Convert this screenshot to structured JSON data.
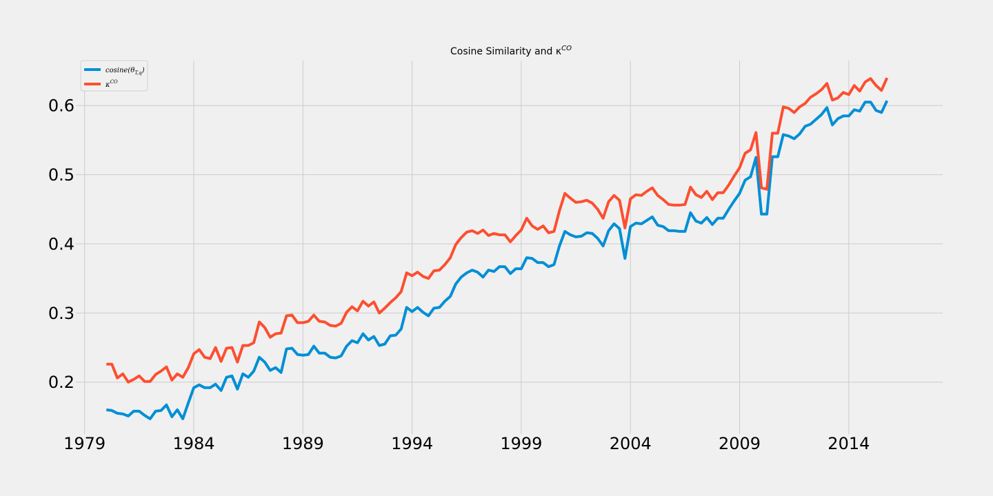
{
  "chart_data": {
    "type": "line",
    "title": "Cosine Similarity and κ",
    "title_sup": "CO",
    "xlabel": "",
    "ylabel": "",
    "xlim": [
      1978.6,
      2018.3
    ],
    "ylim": [
      0.125,
      0.665
    ],
    "x_ticks": [
      1979,
      1984,
      1989,
      1994,
      1999,
      2004,
      2009,
      2014
    ],
    "y_ticks": [
      0.2,
      0.3,
      0.4,
      0.5,
      0.6
    ],
    "y_tick_labels": [
      "0.2",
      "0.3",
      "0.4",
      "0.5",
      "0.6"
    ],
    "grid": true,
    "legend_position": "top-left",
    "x_start": 1980.0,
    "x_step": 0.25,
    "series": [
      {
        "name": "cosine(θ",
        "name_sub": "T,q",
        "name_suffix": ")",
        "color": "#008fd5",
        "values": [
          0.16,
          0.159,
          0.155,
          0.154,
          0.151,
          0.158,
          0.158,
          0.152,
          0.147,
          0.158,
          0.159,
          0.167,
          0.15,
          0.16,
          0.147,
          0.17,
          0.192,
          0.196,
          0.192,
          0.192,
          0.197,
          0.188,
          0.207,
          0.209,
          0.19,
          0.212,
          0.207,
          0.216,
          0.236,
          0.229,
          0.217,
          0.221,
          0.214,
          0.248,
          0.249,
          0.24,
          0.239,
          0.24,
          0.252,
          0.242,
          0.242,
          0.236,
          0.235,
          0.238,
          0.252,
          0.26,
          0.257,
          0.27,
          0.261,
          0.266,
          0.253,
          0.255,
          0.267,
          0.268,
          0.277,
          0.308,
          0.302,
          0.308,
          0.301,
          0.296,
          0.307,
          0.308,
          0.317,
          0.324,
          0.342,
          0.352,
          0.358,
          0.362,
          0.359,
          0.352,
          0.362,
          0.36,
          0.367,
          0.367,
          0.357,
          0.364,
          0.364,
          0.38,
          0.379,
          0.373,
          0.373,
          0.367,
          0.37,
          0.397,
          0.418,
          0.413,
          0.41,
          0.411,
          0.416,
          0.415,
          0.408,
          0.397,
          0.419,
          0.429,
          0.422,
          0.379,
          0.425,
          0.43,
          0.429,
          0.434,
          0.439,
          0.427,
          0.425,
          0.419,
          0.419,
          0.418,
          0.418,
          0.445,
          0.433,
          0.43,
          0.438,
          0.428,
          0.437,
          0.437,
          0.45,
          0.462,
          0.473,
          0.492,
          0.497,
          0.525,
          0.443,
          0.443,
          0.526,
          0.526,
          0.558,
          0.556,
          0.552,
          0.559,
          0.57,
          0.573,
          0.58,
          0.587,
          0.597,
          0.572,
          0.581,
          0.585,
          0.585,
          0.594,
          0.592,
          0.605,
          0.605,
          0.593,
          0.59,
          0.607
        ]
      },
      {
        "name": "κ",
        "name_sup": "CO",
        "color": "#fc4f30",
        "values": [
          0.226,
          0.226,
          0.206,
          0.212,
          0.2,
          0.204,
          0.209,
          0.201,
          0.201,
          0.211,
          0.216,
          0.222,
          0.203,
          0.212,
          0.207,
          0.221,
          0.241,
          0.247,
          0.236,
          0.234,
          0.25,
          0.23,
          0.249,
          0.25,
          0.229,
          0.253,
          0.253,
          0.257,
          0.287,
          0.279,
          0.265,
          0.27,
          0.271,
          0.296,
          0.297,
          0.286,
          0.286,
          0.288,
          0.297,
          0.288,
          0.287,
          0.282,
          0.281,
          0.285,
          0.301,
          0.309,
          0.303,
          0.317,
          0.31,
          0.316,
          0.3,
          0.307,
          0.315,
          0.322,
          0.331,
          0.358,
          0.354,
          0.359,
          0.353,
          0.35,
          0.361,
          0.362,
          0.37,
          0.38,
          0.399,
          0.409,
          0.417,
          0.419,
          0.415,
          0.42,
          0.412,
          0.415,
          0.413,
          0.413,
          0.403,
          0.412,
          0.42,
          0.437,
          0.426,
          0.421,
          0.426,
          0.416,
          0.418,
          0.448,
          0.473,
          0.466,
          0.46,
          0.461,
          0.463,
          0.459,
          0.45,
          0.437,
          0.461,
          0.47,
          0.463,
          0.423,
          0.465,
          0.471,
          0.47,
          0.476,
          0.481,
          0.47,
          0.464,
          0.457,
          0.456,
          0.456,
          0.457,
          0.482,
          0.471,
          0.467,
          0.476,
          0.464,
          0.474,
          0.474,
          0.485,
          0.498,
          0.51,
          0.531,
          0.536,
          0.561,
          0.481,
          0.479,
          0.56,
          0.56,
          0.598,
          0.596,
          0.59,
          0.598,
          0.603,
          0.612,
          0.617,
          0.623,
          0.632,
          0.608,
          0.611,
          0.619,
          0.616,
          0.629,
          0.621,
          0.634,
          0.639,
          0.629,
          0.622,
          0.64
        ]
      }
    ]
  }
}
